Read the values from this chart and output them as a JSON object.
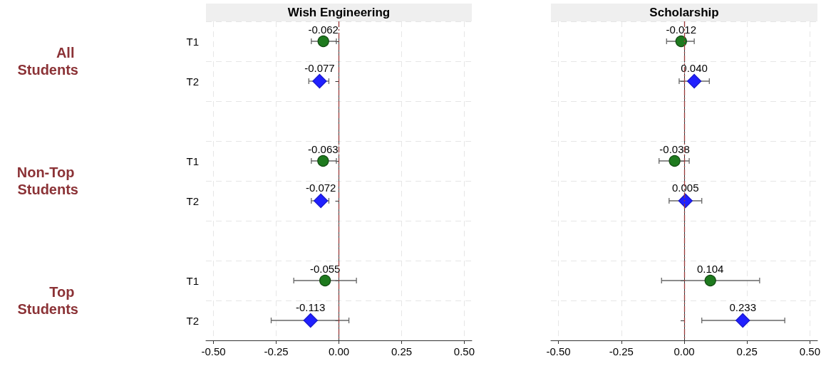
{
  "chart_data": [
    {
      "type": "scatter",
      "title": "Wish Engineering",
      "orientation": "horizontal",
      "categories": [
        "T1",
        "T2",
        null,
        "T1",
        "T2",
        null,
        "T1",
        "T2"
      ],
      "series": [
        {
          "color": "#1e7a1e",
          "marker": "circle",
          "values": [
            -0.062,
            null,
            null,
            -0.063,
            null,
            null,
            -0.055,
            null
          ],
          "value_labels": [
            "-0.062",
            null,
            null,
            "-0.063",
            null,
            null,
            "-0.055",
            null
          ],
          "errors": [
            [
              -0.11,
              -0.01
            ],
            null,
            null,
            [
              -0.11,
              -0.01
            ],
            null,
            null,
            [
              -0.18,
              0.07
            ],
            null
          ]
        },
        {
          "color": "#2020ff",
          "marker": "diamond",
          "values": [
            null,
            -0.077,
            null,
            null,
            -0.072,
            null,
            null,
            -0.113
          ],
          "value_labels": [
            null,
            "-0.077",
            null,
            null,
            "-0.072",
            null,
            null,
            "-0.113"
          ],
          "errors": [
            null,
            [
              -0.12,
              -0.04
            ],
            null,
            null,
            [
              -0.11,
              -0.04
            ],
            null,
            null,
            [
              -0.27,
              0.04
            ]
          ]
        }
      ],
      "xlim": [
        -0.53,
        0.53
      ],
      "xticks": [
        {
          "value": -0.5,
          "label": "-0.50"
        },
        {
          "value": -0.25,
          "label": "-0.25"
        },
        {
          "value": 0,
          "label": "0.00"
        },
        {
          "value": 0.25,
          "label": "0.25"
        },
        {
          "value": 0.5,
          "label": "0.50"
        }
      ],
      "ref_lines": [
        {
          "axis": "x",
          "value": 0,
          "color": "#9b3b3b",
          "line_style": "dashdot"
        }
      ],
      "grid": true,
      "annotations": [
        "All Students",
        "Non-Top Students",
        "Top Students"
      ]
    },
    {
      "type": "scatter",
      "title": "Scholarship",
      "orientation": "horizontal",
      "categories": [
        "T1",
        "T2",
        null,
        "T1",
        "T2",
        null,
        "T1",
        "T2"
      ],
      "series": [
        {
          "color": "#1e7a1e",
          "marker": "circle",
          "values": [
            -0.012,
            null,
            null,
            -0.038,
            null,
            null,
            0.104,
            null
          ],
          "value_labels": [
            "-0.012",
            null,
            null,
            "-0.038",
            null,
            null,
            "0.104",
            null
          ],
          "errors": [
            [
              -0.07,
              0.04
            ],
            null,
            null,
            [
              -0.1,
              0.02
            ],
            null,
            null,
            [
              -0.09,
              0.3
            ],
            null
          ]
        },
        {
          "color": "#2020ff",
          "marker": "diamond",
          "values": [
            null,
            0.04,
            null,
            null,
            0.005,
            null,
            null,
            0.233
          ],
          "value_labels": [
            null,
            "0.040",
            null,
            null,
            "0.005",
            null,
            null,
            "0.233"
          ],
          "errors": [
            null,
            [
              -0.02,
              0.1
            ],
            null,
            null,
            [
              -0.06,
              0.07
            ],
            null,
            null,
            [
              0.07,
              0.4
            ]
          ]
        }
      ],
      "xlim": [
        -0.53,
        0.53
      ],
      "xticks": [
        {
          "value": -0.5,
          "label": "-0.50"
        },
        {
          "value": -0.25,
          "label": "-0.25"
        },
        {
          "value": 0,
          "label": "0.00"
        },
        {
          "value": 0.25,
          "label": "0.25"
        },
        {
          "value": 0.5,
          "label": "0.50"
        }
      ],
      "ref_lines": [
        {
          "axis": "x",
          "value": 0,
          "color": "#9b3b3b",
          "line_style": "dashdot"
        }
      ],
      "grid": true,
      "tick_labels": "x"
    }
  ]
}
